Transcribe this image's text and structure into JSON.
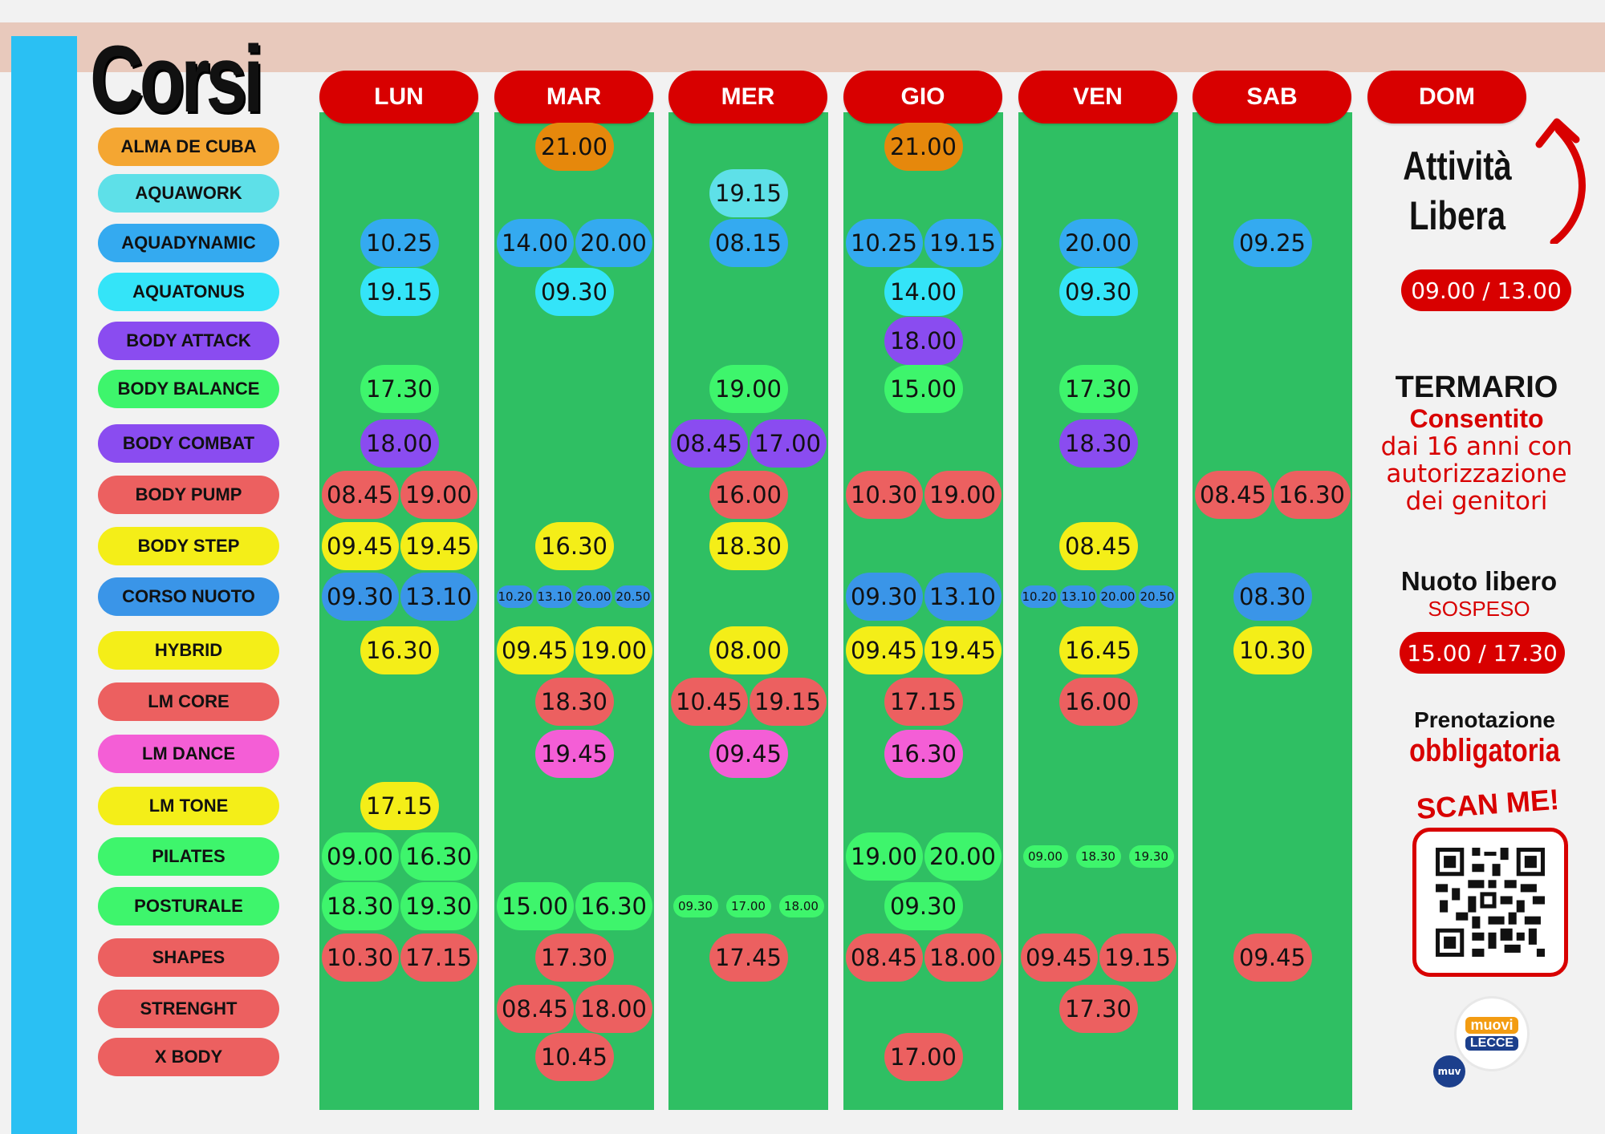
{
  "title": "Corsi",
  "days": [
    "LUN",
    "MAR",
    "MER",
    "GIO",
    "VEN",
    "SAB",
    "DOM"
  ],
  "courses": [
    {
      "name": "ALMA DE CUBA",
      "color": "#f4a632"
    },
    {
      "name": "AQUAWORK",
      "color": "#5ee0e8"
    },
    {
      "name": "AQUADYNAMIC",
      "color": "#34aaf0"
    },
    {
      "name": "AQUATONUS",
      "color": "#34e4f8"
    },
    {
      "name": "BODY ATTACK",
      "color": "#8a4cf0"
    },
    {
      "name": "BODY BALANCE",
      "color": "#3ef56c"
    },
    {
      "name": "BODY COMBAT",
      "color": "#8a4cf0"
    },
    {
      "name": "BODY PUMP",
      "color": "#ec6060"
    },
    {
      "name": "BODY STEP",
      "color": "#f4ee18"
    },
    {
      "name": "CORSO NUOTO",
      "color": "#3a95e8"
    },
    {
      "name": "HYBRID",
      "color": "#f4ee18"
    },
    {
      "name": "LM CORE",
      "color": "#ec6060"
    },
    {
      "name": "LM DANCE",
      "color": "#f45ed6"
    },
    {
      "name": "LM TONE",
      "color": "#f4ee18"
    },
    {
      "name": "PILATES",
      "color": "#3ef56c"
    },
    {
      "name": "POSTURALE",
      "color": "#3ef56c"
    },
    {
      "name": "SHAPES",
      "color": "#ec6060"
    },
    {
      "name": "STRENGHT",
      "color": "#ec6060"
    },
    {
      "name": "X BODY",
      "color": "#ec6060"
    }
  ],
  "schedule": [
    {
      "course": 0,
      "day": 1,
      "times": [
        "21.00"
      ],
      "color": "#e6880c"
    },
    {
      "course": 0,
      "day": 3,
      "times": [
        "21.00"
      ],
      "color": "#e6880c"
    },
    {
      "course": 1,
      "day": 2,
      "times": [
        "19.15"
      ],
      "color": "#5ee0e8"
    },
    {
      "course": 2,
      "day": 0,
      "times": [
        "10.25"
      ],
      "color": "#34aaf0"
    },
    {
      "course": 2,
      "day": 1,
      "times": [
        "14.00",
        "20.00"
      ],
      "color": "#34aaf0"
    },
    {
      "course": 2,
      "day": 2,
      "times": [
        "08.15"
      ],
      "color": "#34aaf0"
    },
    {
      "course": 2,
      "day": 3,
      "times": [
        "10.25",
        "19.15"
      ],
      "color": "#34aaf0"
    },
    {
      "course": 2,
      "day": 4,
      "times": [
        "20.00"
      ],
      "color": "#34aaf0"
    },
    {
      "course": 2,
      "day": 5,
      "times": [
        "09.25"
      ],
      "color": "#34aaf0"
    },
    {
      "course": 3,
      "day": 0,
      "times": [
        "19.15"
      ],
      "color": "#34e4f8"
    },
    {
      "course": 3,
      "day": 1,
      "times": [
        "09.30"
      ],
      "color": "#34e4f8"
    },
    {
      "course": 3,
      "day": 3,
      "times": [
        "14.00"
      ],
      "color": "#34e4f8"
    },
    {
      "course": 3,
      "day": 4,
      "times": [
        "09.30"
      ],
      "color": "#34e4f8"
    },
    {
      "course": 4,
      "day": 3,
      "times": [
        "18.00"
      ],
      "color": "#8a4cf0"
    },
    {
      "course": 5,
      "day": 0,
      "times": [
        "17.30"
      ],
      "color": "#3ef56c"
    },
    {
      "course": 5,
      "day": 2,
      "times": [
        "19.00"
      ],
      "color": "#3ef56c"
    },
    {
      "course": 5,
      "day": 3,
      "times": [
        "15.00"
      ],
      "color": "#3ef56c"
    },
    {
      "course": 5,
      "day": 4,
      "times": [
        "17.30"
      ],
      "color": "#3ef56c"
    },
    {
      "course": 6,
      "day": 0,
      "times": [
        "18.00"
      ],
      "color": "#8a4cf0"
    },
    {
      "course": 6,
      "day": 2,
      "times": [
        "08.45",
        "17.00"
      ],
      "color": "#8a4cf0"
    },
    {
      "course": 6,
      "day": 4,
      "times": [
        "18.30"
      ],
      "color": "#8a4cf0"
    },
    {
      "course": 7,
      "day": 0,
      "times": [
        "08.45",
        "19.00"
      ],
      "color": "#ec6060"
    },
    {
      "course": 7,
      "day": 2,
      "times": [
        "16.00"
      ],
      "color": "#ec6060"
    },
    {
      "course": 7,
      "day": 3,
      "times": [
        "10.30",
        "19.00"
      ],
      "color": "#ec6060"
    },
    {
      "course": 7,
      "day": 5,
      "times": [
        "08.45",
        "16.30"
      ],
      "color": "#ec6060"
    },
    {
      "course": 8,
      "day": 0,
      "times": [
        "09.45",
        "19.45"
      ],
      "color": "#f4ee18"
    },
    {
      "course": 8,
      "day": 1,
      "times": [
        "16.30"
      ],
      "color": "#f4ee18"
    },
    {
      "course": 8,
      "day": 2,
      "times": [
        "18.30"
      ],
      "color": "#f4ee18"
    },
    {
      "course": 8,
      "day": 4,
      "times": [
        "08.45"
      ],
      "color": "#f4ee18"
    },
    {
      "course": 9,
      "day": 0,
      "times": [
        "09.30",
        "13.10"
      ],
      "color": "#3a95e8"
    },
    {
      "course": 9,
      "day": 1,
      "times": [
        "10.20",
        "13.10",
        "20.00",
        "20.50"
      ],
      "color": "#3a95e8",
      "small": true
    },
    {
      "course": 9,
      "day": 3,
      "times": [
        "09.30",
        "13.10"
      ],
      "color": "#3a95e8"
    },
    {
      "course": 9,
      "day": 4,
      "times": [
        "10.20",
        "13.10",
        "20.00",
        "20.50"
      ],
      "color": "#3a95e8",
      "small": true
    },
    {
      "course": 9,
      "day": 5,
      "times": [
        "08.30"
      ],
      "color": "#3a95e8"
    },
    {
      "course": 10,
      "day": 0,
      "times": [
        "16.30"
      ],
      "color": "#f4ee18"
    },
    {
      "course": 10,
      "day": 1,
      "times": [
        "09.45",
        "19.00"
      ],
      "color": "#f4ee18"
    },
    {
      "course": 10,
      "day": 2,
      "times": [
        "08.00"
      ],
      "color": "#f4ee18"
    },
    {
      "course": 10,
      "day": 3,
      "times": [
        "09.45",
        "19.45"
      ],
      "color": "#f4ee18"
    },
    {
      "course": 10,
      "day": 4,
      "times": [
        "16.45"
      ],
      "color": "#f4ee18"
    },
    {
      "course": 10,
      "day": 5,
      "times": [
        "10.30"
      ],
      "color": "#f4ee18"
    },
    {
      "course": 11,
      "day": 1,
      "times": [
        "18.30"
      ],
      "color": "#ec6060"
    },
    {
      "course": 11,
      "day": 2,
      "times": [
        "10.45",
        "19.15"
      ],
      "color": "#ec6060"
    },
    {
      "course": 11,
      "day": 3,
      "times": [
        "17.15"
      ],
      "color": "#ec6060"
    },
    {
      "course": 11,
      "day": 4,
      "times": [
        "16.00"
      ],
      "color": "#ec6060"
    },
    {
      "course": 12,
      "day": 1,
      "times": [
        "19.45"
      ],
      "color": "#f45ed6"
    },
    {
      "course": 12,
      "day": 2,
      "times": [
        "09.45"
      ],
      "color": "#f45ed6"
    },
    {
      "course": 12,
      "day": 3,
      "times": [
        "16.30"
      ],
      "color": "#f45ed6"
    },
    {
      "course": 13,
      "day": 0,
      "times": [
        "17.15"
      ],
      "color": "#f4ee18"
    },
    {
      "course": 14,
      "day": 0,
      "times": [
        "09.00",
        "16.30"
      ],
      "color": "#3ef56c"
    },
    {
      "course": 14,
      "day": 3,
      "times": [
        "19.00",
        "20.00"
      ],
      "color": "#3ef56c"
    },
    {
      "course": 14,
      "day": 4,
      "times": [
        "09.00",
        "18.30",
        "19.30"
      ],
      "color": "#3ef56c",
      "small": true
    },
    {
      "course": 15,
      "day": 0,
      "times": [
        "18.30",
        "19.30"
      ],
      "color": "#3ef56c"
    },
    {
      "course": 15,
      "day": 1,
      "times": [
        "15.00",
        "16.30"
      ],
      "color": "#3ef56c"
    },
    {
      "course": 15,
      "day": 2,
      "times": [
        "09.30",
        "17.00",
        "18.00"
      ],
      "color": "#3ef56c",
      "small": true
    },
    {
      "course": 15,
      "day": 3,
      "times": [
        "09.30"
      ],
      "color": "#3ef56c"
    },
    {
      "course": 16,
      "day": 0,
      "times": [
        "10.30",
        "17.15"
      ],
      "color": "#ec6060"
    },
    {
      "course": 16,
      "day": 1,
      "times": [
        "17.30"
      ],
      "color": "#ec6060"
    },
    {
      "course": 16,
      "day": 2,
      "times": [
        "17.45"
      ],
      "color": "#ec6060"
    },
    {
      "course": 16,
      "day": 3,
      "times": [
        "08.45",
        "18.00"
      ],
      "color": "#ec6060"
    },
    {
      "course": 16,
      "day": 4,
      "times": [
        "09.45",
        "19.15"
      ],
      "color": "#ec6060"
    },
    {
      "course": 16,
      "day": 5,
      "times": [
        "09.45"
      ],
      "color": "#ec6060"
    },
    {
      "course": 17,
      "day": 1,
      "times": [
        "08.45",
        "18.00"
      ],
      "color": "#ec6060"
    },
    {
      "course": 17,
      "day": 4,
      "times": [
        "17.30"
      ],
      "color": "#ec6060"
    },
    {
      "course": 18,
      "day": 1,
      "times": [
        "10.45"
      ],
      "color": "#ec6060"
    },
    {
      "course": 18,
      "day": 3,
      "times": [
        "17.00"
      ],
      "color": "#ec6060"
    }
  ],
  "side": {
    "attivita_line1": "Attività",
    "attivita_line2": "Libera",
    "attivita_time": "09.00 / 13.00",
    "termario_title": "TERMARIO",
    "termario_consentito": "Consentito",
    "termario_line1": "dai 16 anni con",
    "termario_line2": "autorizzazione",
    "termario_line3": "dei genitori",
    "nuoto_title": "Nuoto libero",
    "nuoto_status": "SOSPESO",
    "nuoto_time": "15.00 / 17.30",
    "prenotazione": "Prenotazione",
    "obbligatoria": "obbligatoria",
    "scan_me": "SCAN ME!",
    "logo_main": "muovi",
    "logo_city": "LECCE",
    "logo_small": "muv"
  },
  "colors": {
    "day_red": "#d80000",
    "column_green": "#2fbf63",
    "sidebar_blue": "#2ac0f3"
  }
}
